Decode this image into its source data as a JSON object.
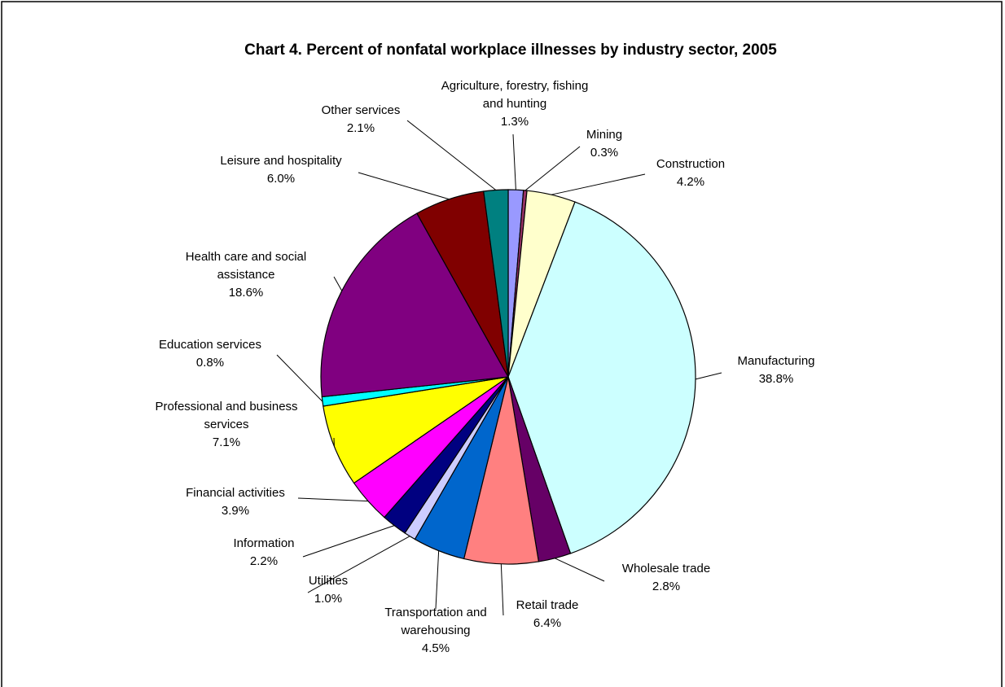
{
  "chart_data": {
    "type": "pie",
    "title": "Chart 4.  Percent of nonfatal workplace illnesses by industry sector, 2005",
    "categories": [
      "Agriculture, forestry, fishing and hunting",
      "Mining",
      "Construction",
      "Manufacturing",
      "Wholesale trade",
      "Retail trade",
      "Transportation and warehousing",
      "Utilities",
      "Information",
      "Financial activities",
      "Professional and business services",
      "Education services",
      "Health care and social assistance",
      "Leisure and hospitality",
      "Other services"
    ],
    "values": [
      1.3,
      0.3,
      4.2,
      38.8,
      2.8,
      6.4,
      4.5,
      1.0,
      2.2,
      3.9,
      7.1,
      0.8,
      18.6,
      6.0,
      2.1
    ],
    "value_labels": [
      "1.3%",
      "0.3%",
      "4.2%",
      "38.8%",
      "2.8%",
      "6.4%",
      "4.5%",
      "1.0%",
      "2.2%",
      "3.9%",
      "7.1%",
      "0.8%",
      "18.6%",
      "6.0%",
      "2.1%"
    ],
    "colors": [
      "#9999ff",
      "#993366",
      "#ffffcc",
      "#ccffff",
      "#660066",
      "#ff8080",
      "#0066cc",
      "#ccccff",
      "#000080",
      "#ff00ff",
      "#ffff00",
      "#00ffff",
      "#800080",
      "#800000",
      "#008080"
    ]
  }
}
